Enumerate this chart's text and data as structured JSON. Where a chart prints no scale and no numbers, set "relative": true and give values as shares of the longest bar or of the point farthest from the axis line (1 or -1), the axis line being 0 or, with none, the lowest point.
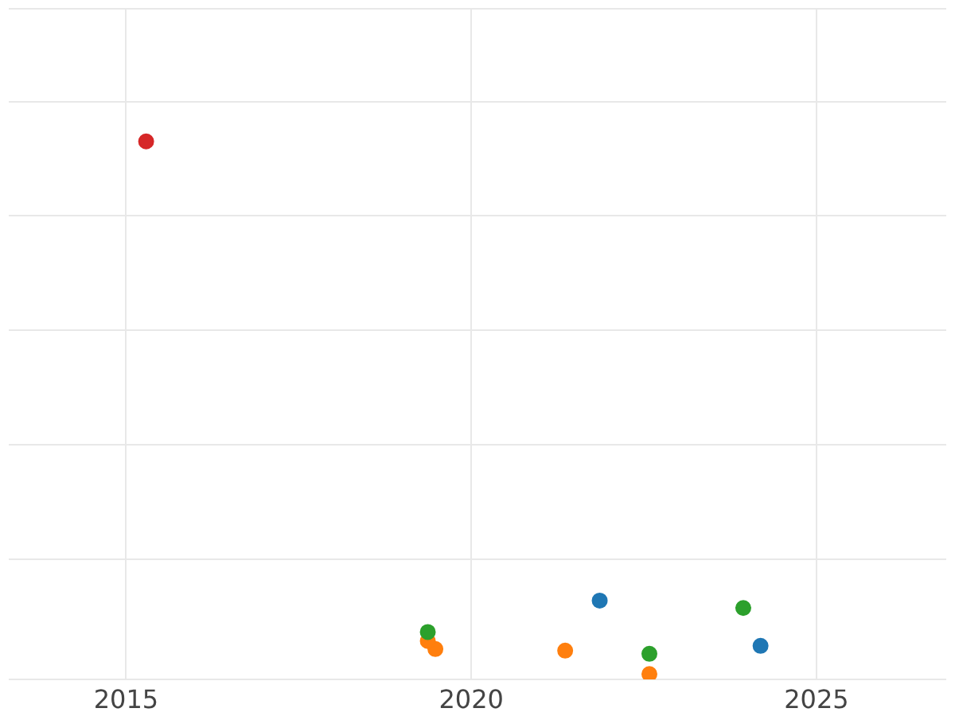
{
  "chart_data": {
    "type": "scatter",
    "relative": true,
    "xlim": [
      2013.3,
      2026.88
    ],
    "xticks": [
      2015,
      2020,
      2025
    ],
    "grid": true,
    "legend": false,
    "marker": "circle",
    "series": [
      {
        "color": "#d62728",
        "x": [
          2015.29
        ],
        "values": [
          1.0
        ]
      },
      {
        "color": "#2ca02c",
        "x": [
          2019.37,
          2022.58,
          2023.94
        ],
        "values": [
          0.079,
          0.038,
          0.124
        ]
      },
      {
        "color": "#ff7f0e",
        "x": [
          2019.48,
          2021.36,
          2022.58,
          2019.37
        ],
        "values": [
          0.047,
          0.044,
          0,
          0.062
        ]
      },
      {
        "color": "#1f77b4",
        "x": [
          2021.86,
          2024.19
        ],
        "values": [
          0.138,
          0.053
        ]
      }
    ]
  }
}
